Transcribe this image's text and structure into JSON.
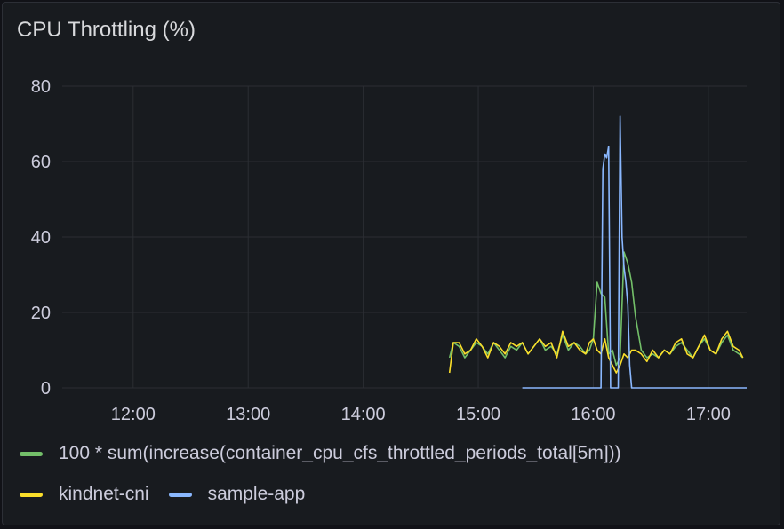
{
  "panel": {
    "title": "CPU Throttling (%)"
  },
  "legend": [
    {
      "label": "100 * sum(increase(container_cpu_cfs_throttled_periods_total[5m]))",
      "color": "#73bf69"
    },
    {
      "label": "kindnet-cni",
      "color": "#fade2a"
    },
    {
      "label": "sample-app",
      "color": "#8ab8ff"
    }
  ],
  "chart_data": {
    "type": "line",
    "title": "CPU Throttling (%)",
    "xlabel": "",
    "ylabel": "",
    "x_unit": "time (HH:MM)",
    "xlim": [
      "11:23",
      "17:20"
    ],
    "ylim": [
      0,
      80
    ],
    "grid": true,
    "legend_position": "bottom",
    "x_ticks": [
      "12:00",
      "13:00",
      "14:00",
      "15:00",
      "16:00",
      "17:00"
    ],
    "y_ticks": [
      0,
      20,
      40,
      60,
      80
    ],
    "series": [
      {
        "name": "100 * sum(increase(container_cpu_cfs_throttled_periods_total[5m]))",
        "color": "#73bf69",
        "x": [
          "14:45",
          "14:47",
          "14:50",
          "14:53",
          "14:56",
          "14:59",
          "15:02",
          "15:05",
          "15:08",
          "15:11",
          "15:14",
          "15:17",
          "15:20",
          "15:23",
          "15:26",
          "15:29",
          "15:32",
          "15:35",
          "15:38",
          "15:41",
          "15:44",
          "15:47",
          "15:50",
          "15:53",
          "15:56",
          "15:58",
          "16:00",
          "16:02",
          "16:04",
          "16:06",
          "16:08",
          "16:10",
          "16:12",
          "16:14",
          "16:16",
          "16:18",
          "16:20",
          "16:22",
          "16:25",
          "16:28",
          "16:31",
          "16:34",
          "16:37",
          "16:40",
          "16:43",
          "16:46",
          "16:49",
          "16:52",
          "16:55",
          "16:58",
          "17:01",
          "17:04",
          "17:07",
          "17:10",
          "17:13",
          "17:16",
          "17:18"
        ],
        "y": [
          8,
          12,
          11,
          8,
          10,
          12,
          11,
          9,
          12,
          10,
          8,
          11,
          10,
          12,
          9,
          11,
          13,
          10,
          11,
          9,
          14,
          10,
          12,
          11,
          9,
          10,
          13,
          28,
          25,
          24,
          9,
          10,
          6,
          8,
          36,
          33,
          28,
          19,
          10,
          8,
          9,
          8,
          10,
          9,
          11,
          12,
          10,
          8,
          11,
          13,
          10,
          9,
          12,
          14,
          10,
          9,
          8
        ]
      },
      {
        "name": "kindnet-cni",
        "color": "#fade2a",
        "x": [
          "14:45",
          "14:47",
          "14:50",
          "14:53",
          "14:56",
          "14:59",
          "15:02",
          "15:05",
          "15:08",
          "15:11",
          "15:14",
          "15:17",
          "15:20",
          "15:23",
          "15:26",
          "15:29",
          "15:32",
          "15:35",
          "15:38",
          "15:41",
          "15:44",
          "15:47",
          "15:50",
          "15:53",
          "15:56",
          "15:58",
          "16:00",
          "16:02",
          "16:04",
          "16:06",
          "16:08",
          "16:10",
          "16:12",
          "16:14",
          "16:16",
          "16:18",
          "16:20",
          "16:22",
          "16:25",
          "16:28",
          "16:31",
          "16:34",
          "16:37",
          "16:40",
          "16:43",
          "16:46",
          "16:49",
          "16:52",
          "16:55",
          "16:58",
          "17:01",
          "17:04",
          "17:07",
          "17:10",
          "17:13",
          "17:16",
          "17:18"
        ],
        "y": [
          4,
          12,
          12,
          9,
          10,
          13,
          11,
          8,
          12,
          11,
          9,
          12,
          11,
          12,
          9,
          11,
          13,
          11,
          12,
          8,
          15,
          11,
          12,
          10,
          9,
          12,
          13,
          10,
          9,
          13,
          8,
          6,
          4,
          6,
          9,
          8,
          10,
          10,
          9,
          7,
          10,
          8,
          10,
          9,
          12,
          13,
          9,
          8,
          11,
          14,
          10,
          9,
          13,
          15,
          11,
          10,
          8
        ]
      },
      {
        "name": "sample-app",
        "color": "#8ab8ff",
        "x": [
          "15:23",
          "15:40",
          "15:55",
          "16:00",
          "16:04",
          "16:05",
          "16:06",
          "16:07",
          "16:08",
          "16:09",
          "16:13",
          "16:14",
          "16:15",
          "16:16",
          "16:17",
          "16:18",
          "16:19",
          "16:20",
          "16:21",
          "16:22",
          "16:23",
          "16:32",
          "16:40",
          "16:50",
          "17:00",
          "17:10",
          "17:20"
        ],
        "y": [
          0,
          0,
          0,
          0,
          0,
          58,
          62,
          61,
          64,
          0,
          0,
          72,
          40,
          32,
          28,
          22,
          6,
          0,
          0,
          0,
          0,
          0,
          0,
          0,
          0,
          0,
          0
        ]
      }
    ]
  }
}
